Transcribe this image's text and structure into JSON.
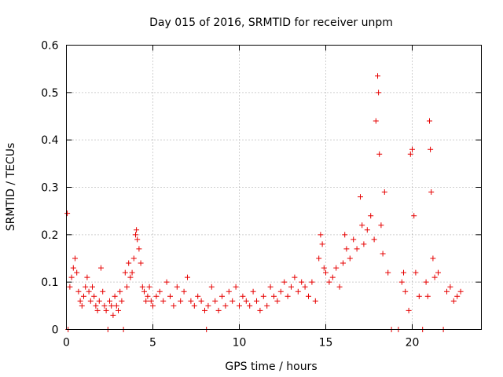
{
  "chart_data": {
    "type": "scatter",
    "title": "Day 015 of 2016, SRMTID for receiver unpm",
    "xlabel": "GPS time / hours",
    "ylabel": "SRMTID / TECUs",
    "xlim": [
      0,
      24
    ],
    "ylim": [
      0,
      0.6
    ],
    "xticks": [
      0,
      5,
      10,
      15,
      20
    ],
    "yticks": [
      0,
      0.1,
      0.2,
      0.3,
      0.4,
      0.5,
      0.6
    ],
    "xtick_labels": [
      "0",
      "5",
      "10",
      "15",
      "20"
    ],
    "ytick_labels": [
      "0",
      "0.1",
      "0.2",
      "0.3",
      "0.4",
      "0.5",
      "0.6"
    ],
    "grid": true,
    "marker": "+",
    "color": "#e60000",
    "series": [
      {
        "name": "SRMTID",
        "points": [
          [
            0.05,
            0.245
          ],
          [
            0.1,
            0.0
          ],
          [
            0.2,
            0.09
          ],
          [
            0.3,
            0.11
          ],
          [
            0.4,
            0.13
          ],
          [
            0.5,
            0.15
          ],
          [
            0.6,
            0.12
          ],
          [
            0.7,
            0.08
          ],
          [
            0.8,
            0.06
          ],
          [
            0.9,
            0.05
          ],
          [
            1.0,
            0.07
          ],
          [
            1.1,
            0.09
          ],
          [
            1.2,
            0.11
          ],
          [
            1.3,
            0.08
          ],
          [
            1.4,
            0.06
          ],
          [
            1.5,
            0.09
          ],
          [
            1.6,
            0.07
          ],
          [
            1.7,
            0.05
          ],
          [
            1.8,
            0.04
          ],
          [
            1.9,
            0.06
          ],
          [
            2.0,
            0.13
          ],
          [
            2.1,
            0.08
          ],
          [
            2.2,
            0.05
          ],
          [
            2.3,
            0.04
          ],
          [
            2.4,
            0.0
          ],
          [
            2.5,
            0.06
          ],
          [
            2.6,
            0.05
          ],
          [
            2.7,
            0.03
          ],
          [
            2.8,
            0.07
          ],
          [
            2.9,
            0.05
          ],
          [
            3.0,
            0.04
          ],
          [
            3.1,
            0.08
          ],
          [
            3.2,
            0.06
          ],
          [
            3.3,
            0.0
          ],
          [
            3.4,
            0.12
          ],
          [
            3.5,
            0.09
          ],
          [
            3.6,
            0.14
          ],
          [
            3.7,
            0.11
          ],
          [
            3.8,
            0.12
          ],
          [
            3.9,
            0.15
          ],
          [
            4.0,
            0.2
          ],
          [
            4.05,
            0.21
          ],
          [
            4.1,
            0.19
          ],
          [
            4.2,
            0.17
          ],
          [
            4.3,
            0.14
          ],
          [
            4.4,
            0.09
          ],
          [
            4.5,
            0.08
          ],
          [
            4.6,
            0.06
          ],
          [
            4.7,
            0.07
          ],
          [
            4.8,
            0.09
          ],
          [
            4.9,
            0.06
          ],
          [
            5.0,
            0.05
          ],
          [
            5.2,
            0.07
          ],
          [
            5.4,
            0.08
          ],
          [
            5.6,
            0.06
          ],
          [
            5.8,
            0.1
          ],
          [
            6.0,
            0.07
          ],
          [
            6.2,
            0.05
          ],
          [
            6.4,
            0.09
          ],
          [
            6.6,
            0.06
          ],
          [
            6.8,
            0.08
          ],
          [
            7.0,
            0.11
          ],
          [
            7.2,
            0.06
          ],
          [
            7.4,
            0.05
          ],
          [
            7.6,
            0.07
          ],
          [
            7.8,
            0.06
          ],
          [
            8.0,
            0.04
          ],
          [
            8.1,
            0.0
          ],
          [
            8.2,
            0.05
          ],
          [
            8.4,
            0.09
          ],
          [
            8.6,
            0.06
          ],
          [
            8.8,
            0.04
          ],
          [
            9.0,
            0.07
          ],
          [
            9.2,
            0.05
          ],
          [
            9.4,
            0.08
          ],
          [
            9.6,
            0.06
          ],
          [
            9.8,
            0.09
          ],
          [
            10.0,
            0.05
          ],
          [
            10.2,
            0.07
          ],
          [
            10.4,
            0.06
          ],
          [
            10.6,
            0.05
          ],
          [
            10.8,
            0.08
          ],
          [
            11.0,
            0.06
          ],
          [
            11.2,
            0.04
          ],
          [
            11.4,
            0.07
          ],
          [
            11.6,
            0.05
          ],
          [
            11.8,
            0.09
          ],
          [
            12.0,
            0.07
          ],
          [
            12.2,
            0.06
          ],
          [
            12.4,
            0.08
          ],
          [
            12.6,
            0.1
          ],
          [
            12.8,
            0.07
          ],
          [
            13.0,
            0.09
          ],
          [
            13.2,
            0.11
          ],
          [
            13.4,
            0.08
          ],
          [
            13.6,
            0.1
          ],
          [
            13.8,
            0.09
          ],
          [
            14.0,
            0.07
          ],
          [
            14.2,
            0.1
          ],
          [
            14.4,
            0.06
          ],
          [
            14.6,
            0.15
          ],
          [
            14.7,
            0.2
          ],
          [
            14.8,
            0.18
          ],
          [
            14.9,
            0.13
          ],
          [
            15.0,
            0.12
          ],
          [
            15.2,
            0.1
          ],
          [
            15.4,
            0.11
          ],
          [
            15.6,
            0.13
          ],
          [
            15.8,
            0.09
          ],
          [
            16.0,
            0.14
          ],
          [
            16.1,
            0.2
          ],
          [
            16.2,
            0.17
          ],
          [
            16.4,
            0.15
          ],
          [
            16.6,
            0.19
          ],
          [
            16.8,
            0.17
          ],
          [
            17.0,
            0.28
          ],
          [
            17.1,
            0.22
          ],
          [
            17.2,
            0.18
          ],
          [
            17.4,
            0.21
          ],
          [
            17.6,
            0.24
          ],
          [
            17.8,
            0.19
          ],
          [
            17.9,
            0.44
          ],
          [
            18.0,
            0.535
          ],
          [
            18.05,
            0.5
          ],
          [
            18.1,
            0.37
          ],
          [
            18.2,
            0.22
          ],
          [
            18.3,
            0.16
          ],
          [
            18.4,
            0.29
          ],
          [
            18.6,
            0.12
          ],
          [
            18.8,
            0.0
          ],
          [
            19.2,
            0.0
          ],
          [
            19.4,
            0.1
          ],
          [
            19.5,
            0.12
          ],
          [
            19.6,
            0.08
          ],
          [
            19.8,
            0.04
          ],
          [
            19.9,
            0.37
          ],
          [
            20.0,
            0.38
          ],
          [
            20.1,
            0.24
          ],
          [
            20.2,
            0.12
          ],
          [
            20.4,
            0.07
          ],
          [
            20.6,
            0.0
          ],
          [
            20.8,
            0.1
          ],
          [
            20.9,
            0.07
          ],
          [
            21.0,
            0.44
          ],
          [
            21.05,
            0.38
          ],
          [
            21.1,
            0.29
          ],
          [
            21.2,
            0.15
          ],
          [
            21.3,
            0.11
          ],
          [
            21.5,
            0.12
          ],
          [
            21.8,
            0.0
          ],
          [
            22.0,
            0.08
          ],
          [
            22.2,
            0.09
          ],
          [
            22.4,
            0.06
          ],
          [
            22.6,
            0.07
          ],
          [
            22.8,
            0.08
          ]
        ]
      }
    ]
  }
}
